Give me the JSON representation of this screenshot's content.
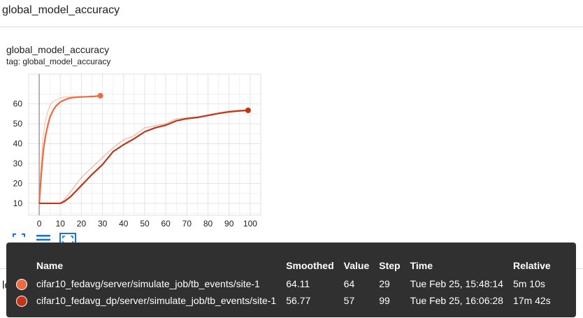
{
  "section": {
    "title": "global_model_accuracy"
  },
  "card": {
    "title": "global_model_accuracy",
    "tag": "tag: global_model_accuracy"
  },
  "lower_section": {
    "title": "loss_for_each_batch"
  },
  "toolbar": [
    {
      "name": "fit-domain-icon"
    },
    {
      "name": "data-table-icon"
    },
    {
      "name": "expand-chart-icon"
    }
  ],
  "tooltip": {
    "headers": [
      "Name",
      "Smoothed",
      "Value",
      "Step",
      "Time",
      "Relative"
    ],
    "rows": [
      {
        "color": "#ef6a3f",
        "name": "cifar10_fedavg/server/simulate_job/tb_events/site-1",
        "smoothed": "64.11",
        "value": "64",
        "step": "29",
        "time": "Tue Feb 25, 15:48:14",
        "relative": "5m 10s"
      },
      {
        "color": "#c23616",
        "name": "cifar10_fedavg_dp/server/simulate_job/tb_events/site-1",
        "smoothed": "56.77",
        "value": "57",
        "step": "99",
        "time": "Tue Feb 25, 16:06:28",
        "relative": "17m 42s"
      }
    ]
  },
  "chart_data": {
    "type": "line",
    "xlim": [
      -5,
      105
    ],
    "ylim": [
      4,
      75
    ],
    "x_ticks": [
      0,
      10,
      20,
      30,
      40,
      50,
      60,
      70,
      80,
      90,
      100
    ],
    "y_ticks": [
      10,
      20,
      30,
      40,
      50,
      60
    ],
    "grid": true,
    "cursor_step": 0,
    "series": [
      {
        "name": "cifar10_fedavg/server/simulate_job/tb_events/site-1",
        "color": "#ef6a3f",
        "x": [
          0,
          1,
          2,
          3,
          4,
          5,
          6,
          7,
          8,
          9,
          10,
          12,
          14,
          16,
          18,
          20,
          22,
          24,
          26,
          28,
          29
        ],
        "smoothed": [
          10,
          25,
          37,
          44,
          49,
          53,
          55.5,
          57.5,
          59,
          60,
          61,
          62,
          62.8,
          63.2,
          63.4,
          63.5,
          63.6,
          63.7,
          63.8,
          64,
          64.11
        ],
        "raw": [
          10,
          33,
          45,
          52,
          56,
          59,
          60.5,
          61.5,
          62,
          62.5,
          63,
          63.5,
          63.5,
          63.7,
          63.4,
          63.8,
          63.5,
          63.9,
          63.8,
          64,
          64
        ]
      },
      {
        "name": "cifar10_fedavg_dp/server/simulate_job/tb_events/site-1",
        "color": "#c23616",
        "x": [
          0,
          5,
          10,
          12,
          15,
          20,
          25,
          30,
          35,
          40,
          45,
          50,
          55,
          60,
          65,
          70,
          75,
          80,
          85,
          90,
          95,
          99
        ],
        "smoothed": [
          10,
          10,
          10,
          11,
          13.5,
          19,
          24.5,
          29.5,
          36,
          39.5,
          42.5,
          46,
          48,
          49.3,
          51.5,
          52.6,
          53.2,
          54.2,
          55.2,
          56,
          56.5,
          56.77
        ],
        "raw": [
          10,
          10,
          10,
          12,
          16,
          23,
          28,
          33,
          38,
          42,
          44,
          48,
          49,
          50,
          52.5,
          53,
          53.5,
          54.5,
          55.5,
          56.5,
          56.8,
          57
        ]
      }
    ]
  }
}
